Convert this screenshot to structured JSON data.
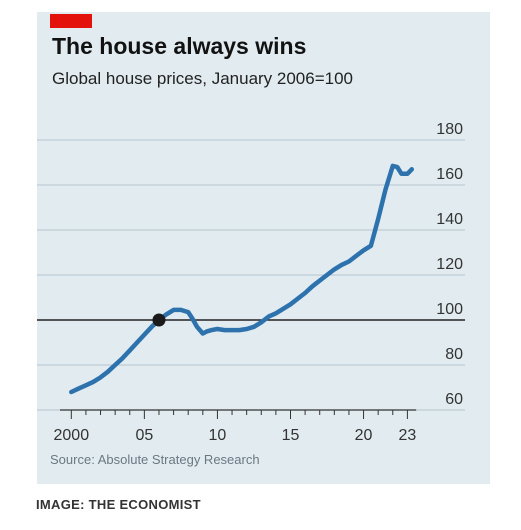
{
  "header": {
    "title": "The house always wins",
    "subtitle": "Global house prices, January 2006=100"
  },
  "footer": {
    "source": "Source: Absolute Strategy Research",
    "credit": "IMAGE: THE ECONOMIST"
  },
  "colors": {
    "background": "#e1ebf0",
    "line": "#2d72ad",
    "accent": "#e3120b",
    "grid": "#b7c6d0",
    "baseline": "#222222"
  },
  "chart_data": {
    "type": "line",
    "title": "The house always wins",
    "subtitle": "Global house prices, January 2006=100",
    "xlabel": "",
    "ylabel": "",
    "xlim": [
      1999.5,
      2024
    ],
    "ylim": [
      60,
      180
    ],
    "y_ticks": [
      60,
      80,
      100,
      120,
      140,
      160,
      180
    ],
    "y_tick_labels": [
      "60",
      "80",
      "100",
      "120",
      "140",
      "160",
      "180"
    ],
    "x_major_ticks": [
      2000,
      2005,
      2010,
      2015,
      2020,
      2023
    ],
    "x_tick_labels": [
      "2000",
      "05",
      "10",
      "15",
      "20",
      "23"
    ],
    "y_axis_position": "right",
    "grid": true,
    "highlight": {
      "x": 2006.0,
      "y": 100
    },
    "series": [
      {
        "x": [
          2000.0,
          2000.5,
          2001.0,
          2001.5,
          2002.0,
          2002.5,
          2003.0,
          2003.5,
          2004.0,
          2004.5,
          2005.0,
          2005.5,
          2006.0,
          2006.5,
          2007.0,
          2007.5,
          2008.0,
          2008.3,
          2008.6,
          2009.0,
          2009.3,
          2009.6,
          2010.0,
          2010.5,
          2011.0,
          2011.5,
          2012.0,
          2012.5,
          2013.0,
          2013.5,
          2014.0,
          2014.5,
          2015.0,
          2015.5,
          2016.0,
          2016.5,
          2017.0,
          2017.5,
          2018.0,
          2018.5,
          2019.0,
          2019.5,
          2020.0,
          2020.5,
          2021.0,
          2021.5,
          2022.0,
          2022.3,
          2022.6,
          2023.0,
          2023.3
        ],
        "values": [
          68,
          69.5,
          71,
          72.5,
          74.5,
          77,
          80,
          83,
          86.5,
          90,
          93.5,
          97,
          100,
          102.5,
          104.5,
          104.5,
          103.5,
          100.5,
          97,
          94,
          95,
          95.5,
          96,
          95.5,
          95.5,
          95.5,
          96,
          97,
          99,
          101.5,
          103,
          105,
          107,
          109.5,
          112,
          115,
          117.5,
          120,
          122.5,
          124.5,
          126,
          128.5,
          131,
          133,
          145,
          158,
          168.5,
          168,
          165,
          165,
          167
        ]
      }
    ]
  }
}
